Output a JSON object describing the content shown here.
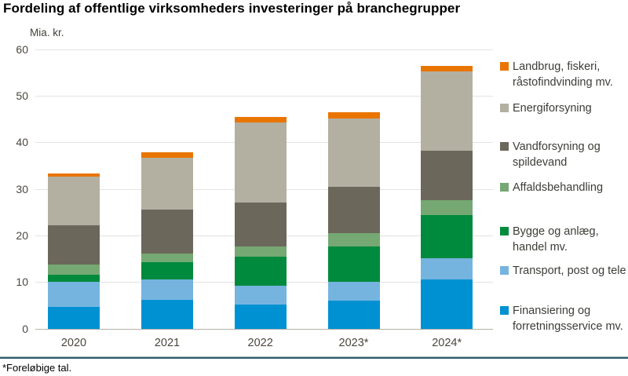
{
  "page": {
    "title": "Fordeling af offentlige virksomheders investeringer på branchegrupper",
    "footnote": "*Foreløbige tal."
  },
  "chart_data": {
    "type": "bar",
    "stacked": true,
    "title": "Fordeling af offentlige virksomheders investeringer på branchegrupper",
    "ylabel": "Mia. kr.",
    "xlabel": "",
    "ylim": [
      0,
      60
    ],
    "yticks": [
      0,
      10,
      20,
      30,
      40,
      50,
      60
    ],
    "grid": "horizontal",
    "legend_position": "right",
    "categories": [
      "2020",
      "2021",
      "2022",
      "2023*",
      "2024*"
    ],
    "series": [
      {
        "name": "Finansiering og forretningsservice mv.",
        "color": "#0091D2",
        "values": [
          4.8,
          6.2,
          5.2,
          6.1,
          10.6
        ]
      },
      {
        "name": "Transport, post og tele",
        "color": "#76B4E0",
        "values": [
          5.3,
          4.4,
          4.1,
          4.0,
          4.6
        ]
      },
      {
        "name": "Bygge og anlæg, handel mv.",
        "color": "#008A3D",
        "values": [
          1.6,
          3.7,
          6.2,
          7.7,
          9.3
        ]
      },
      {
        "name": "Affaldsbehandling",
        "color": "#75A873",
        "values": [
          2.1,
          1.9,
          2.3,
          2.8,
          3.2
        ]
      },
      {
        "name": "Vandforsyning og spildevand",
        "color": "#6C675B",
        "values": [
          8.5,
          9.4,
          9.4,
          9.9,
          10.6
        ]
      },
      {
        "name": "Energiforsyning",
        "color": "#B3B0A2",
        "values": [
          10.5,
          11.2,
          17.1,
          14.8,
          17.1
        ]
      },
      {
        "name": "Landbrug, fiskeri, råstofindvinding mv.",
        "color": "#E97500",
        "values": [
          0.6,
          1.1,
          1.2,
          1.3,
          1.1
        ]
      }
    ],
    "legend": [
      {
        "series": 6,
        "lines": [
          "Landbrug, fiskeri,",
          "råstofindvinding mv."
        ]
      },
      {
        "series": 5,
        "lines": [
          "Energiforsyning"
        ]
      },
      {
        "series": 4,
        "lines": [
          "Vandforsyning og",
          "spildevand"
        ]
      },
      {
        "series": 3,
        "lines": [
          "Affaldsbehandling"
        ]
      },
      {
        "series": 2,
        "lines": [
          "Bygge og anlæg,",
          "handel mv."
        ]
      },
      {
        "series": 1,
        "lines": [
          "Transport, post og tele"
        ]
      },
      {
        "series": 0,
        "lines": [
          "Finansiering og",
          "forretningsservice mv."
        ]
      }
    ]
  },
  "colors": {
    "gridline": "#E4E3DF",
    "zero_line": "#B3B2AB",
    "separator": "#2E5D6D",
    "tick_text": "#4A473F",
    "legend_text": "#3D3C37"
  }
}
